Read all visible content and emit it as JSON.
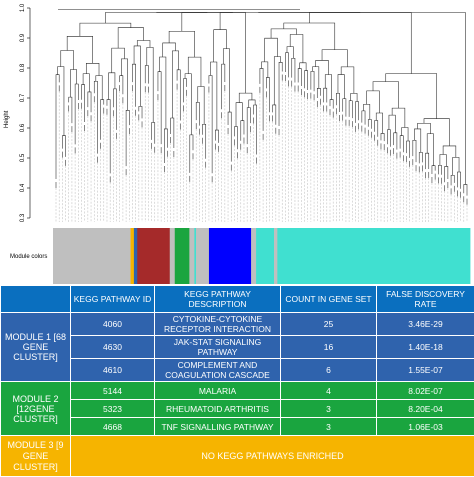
{
  "chart_data": {
    "type": "dendrogram",
    "ylabel": "Height",
    "ylim": [
      0.3,
      1.0
    ],
    "yticks": [
      "0.3",
      "0.4",
      "0.5",
      "0.6",
      "0.7",
      "0.8",
      "0.9",
      "1.0"
    ],
    "module_colors_label": "Module colors",
    "module_colors": [
      {
        "color": "#bfbfbf",
        "share": 0.186
      },
      {
        "color": "#f6b400",
        "share": 0.008
      },
      {
        "color": "#2f63ad",
        "share": 0.008
      },
      {
        "color": "#a52a2a",
        "share": 0.078
      },
      {
        "color": "#bfbfbf",
        "share": 0.012
      },
      {
        "color": "#1aa53f",
        "share": 0.035
      },
      {
        "color": "#bfbfbf",
        "share": 0.012
      },
      {
        "color": "#40e0d0",
        "share": 0.004
      },
      {
        "color": "#bfbfbf",
        "share": 0.031
      },
      {
        "color": "#0000ff",
        "share": 0.101
      },
      {
        "color": "#bfbfbf",
        "share": 0.012
      },
      {
        "color": "#40e0d0",
        "share": 0.043
      },
      {
        "color": "#bfbfbf",
        "share": 0.008
      },
      {
        "color": "#40e0d0",
        "share": 0.462
      }
    ]
  },
  "table": {
    "headers": [
      "KEGG PATHWAY ID",
      "KEGG PATHWAY DESCRIPTION",
      "COUNT IN GENE SET",
      "FALSE DISCOVERY RATE"
    ],
    "module1": {
      "label": "MODULE 1 [68 GENE CLUSTER]",
      "rows": [
        {
          "id": "4060",
          "desc": "CYTOKINE-CYTOKINE RECEPTOR INTERACTION",
          "count": "25",
          "fdr": "3.46E-29"
        },
        {
          "id": "4630",
          "desc": "JAK-STAT SIGNALING PATHWAY",
          "count": "16",
          "fdr": "1.40E-18"
        },
        {
          "id": "4610",
          "desc": "COMPLEMENT AND COAGULATION CASCADE",
          "count": "6",
          "fdr": "1.55E-07"
        }
      ]
    },
    "module2": {
      "label": "MODULE 2 [12GENE CLUSTER]",
      "rows": [
        {
          "id": "5144",
          "desc": "MALARIA",
          "count": "4",
          "fdr": "8.02E-07"
        },
        {
          "id": "5323",
          "desc": "RHEUMATOID ARTHRITIS",
          "count": "3",
          "fdr": "8.20E-04"
        },
        {
          "id": "4668",
          "desc": "TNF SIGNALLING PATHWAY",
          "count": "3",
          "fdr": "1.06E-03"
        }
      ]
    },
    "module3": {
      "label": "MODULE 3 [9 GENE CLUSTER]",
      "none_text": "NO KEGG PATHWAYS ENRICHED"
    }
  },
  "colors": {
    "header": "#0a6fbf",
    "module1": "#2f63ad",
    "module2": "#1aa53f",
    "module3": "#f6b400"
  }
}
